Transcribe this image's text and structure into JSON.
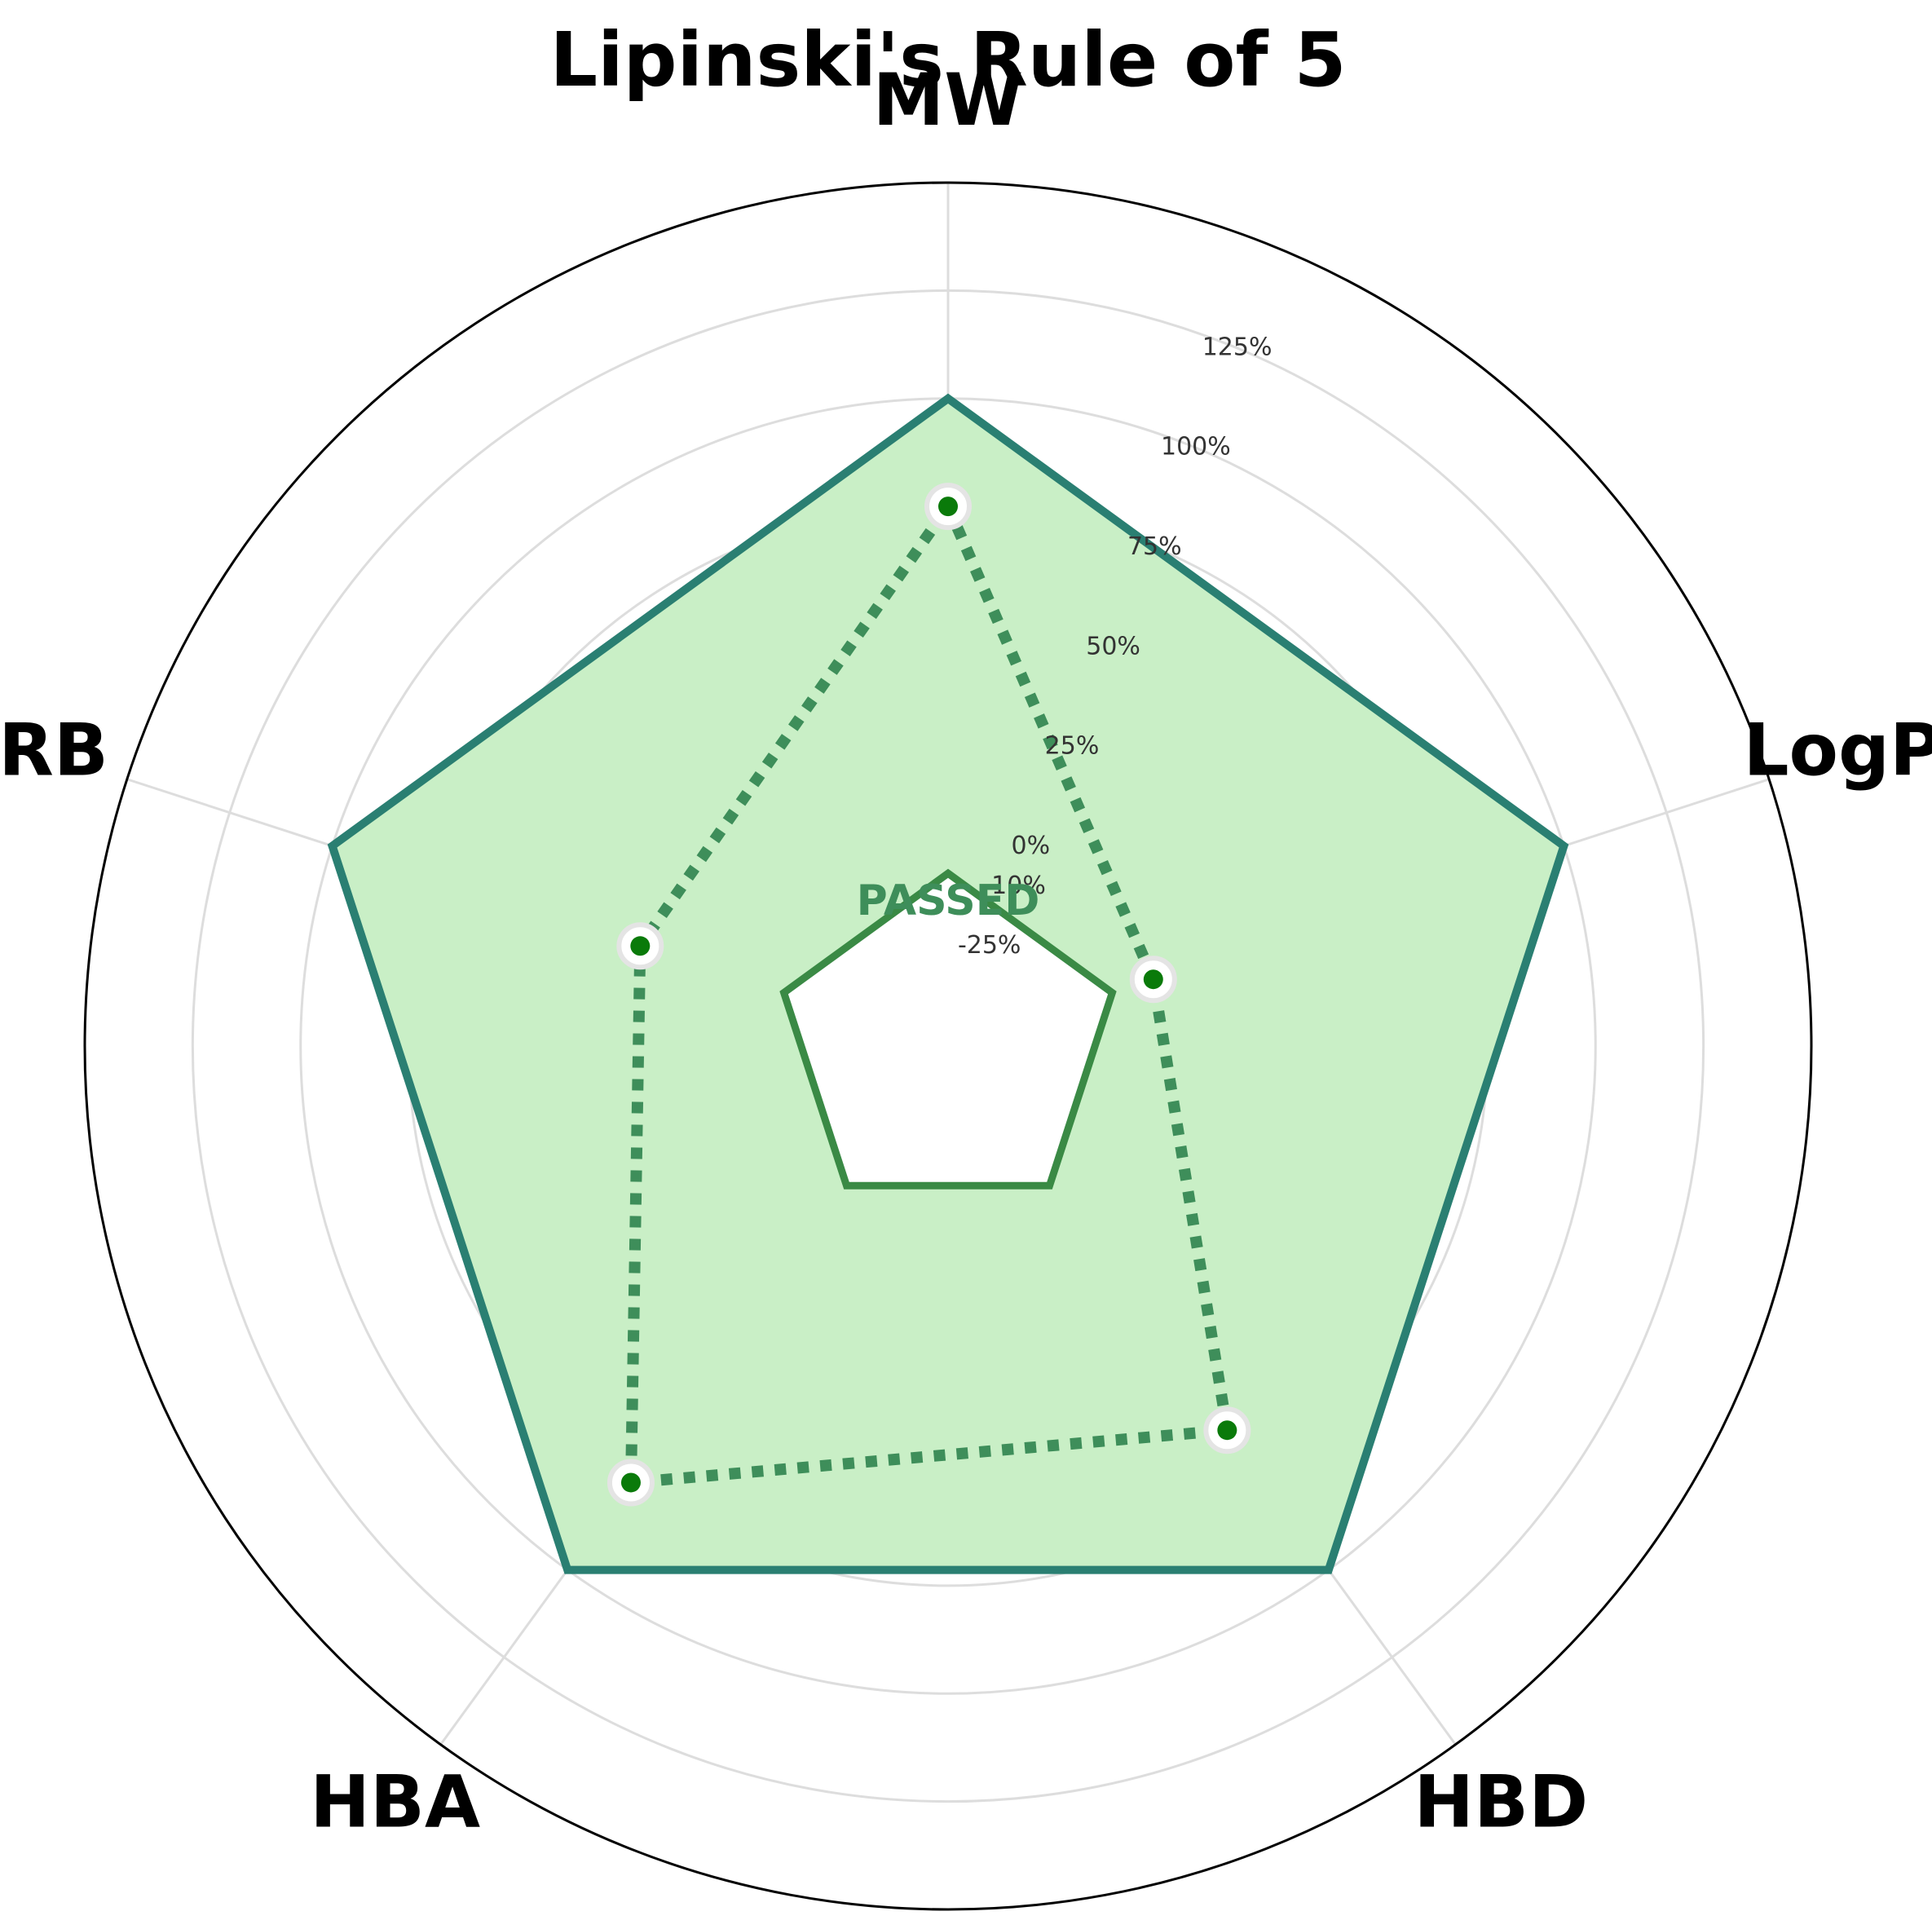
{
  "chart_data": {
    "type": "radar",
    "title": "Lipinski's Rule of 5",
    "axes": [
      "MW",
      "LogP",
      "HBD",
      "HBA",
      "RB"
    ],
    "rlim": [
      -50,
      150
    ],
    "rticks": [
      {
        "value": -25,
        "label": "-25%"
      },
      {
        "value": -10,
        "label": "-10%"
      },
      {
        "value": 0,
        "label": "0%"
      },
      {
        "value": 25,
        "label": "25%"
      },
      {
        "value": 50,
        "label": "50%"
      },
      {
        "value": 75,
        "label": "75%"
      },
      {
        "value": 100,
        "label": "100%"
      },
      {
        "value": 125,
        "label": "125%"
      }
    ],
    "grid": true,
    "status_text": "PASSED",
    "series": [
      {
        "role": "upper_limit",
        "values": [
          100,
          100,
          100,
          100,
          100
        ],
        "color": "#2a7f72",
        "fill": "#c9efc6",
        "style": "solid"
      },
      {
        "role": "lower_limit",
        "values": [
          -10,
          -10,
          -10,
          -10,
          -10
        ],
        "color": "#3a8a45",
        "style": "solid"
      },
      {
        "role": "compound",
        "values": [
          75,
          0,
          60,
          75,
          25
        ],
        "color": "#3e8e5a",
        "marker_color": "#0a7a0a",
        "style": "dotted"
      }
    ]
  }
}
